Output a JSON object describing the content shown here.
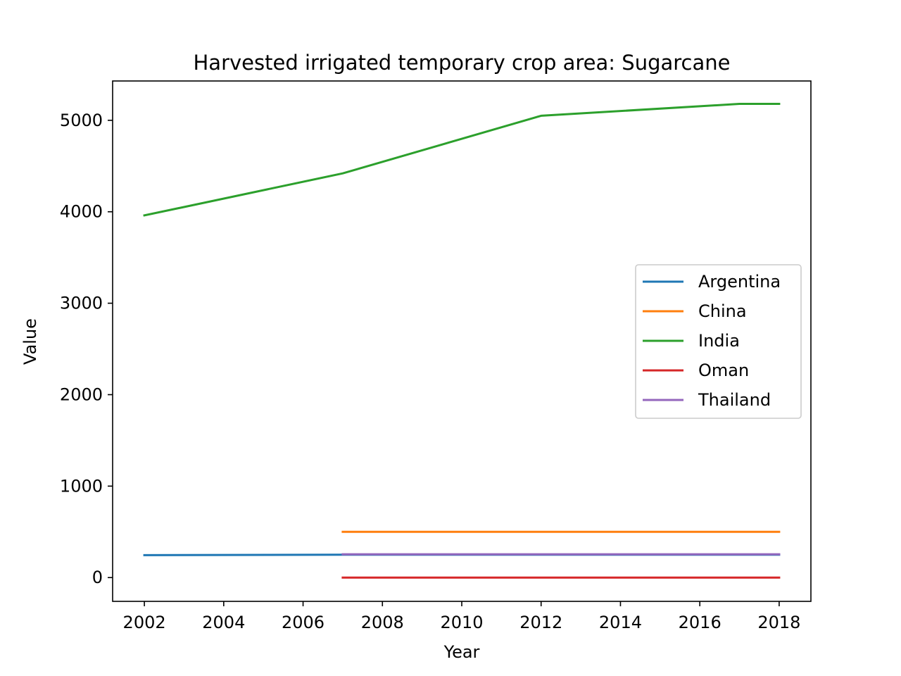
{
  "chart_data": {
    "type": "line",
    "title": "Harvested irrigated temporary crop area: Sugarcane",
    "xlabel": "Year",
    "ylabel": "Value",
    "xlim": [
      2001.2,
      2018.8
    ],
    "ylim": [
      -260,
      5430
    ],
    "xticks": [
      2002,
      2004,
      2006,
      2008,
      2010,
      2012,
      2014,
      2016,
      2018
    ],
    "yticks": [
      0,
      1000,
      2000,
      3000,
      4000,
      5000
    ],
    "grid": false,
    "legend_position": "center-right",
    "series": [
      {
        "name": "Argentina",
        "color": "#1f77b4",
        "x": [
          2002,
          2007,
          2012,
          2017,
          2018
        ],
        "y": [
          245,
          250,
          250,
          250,
          250
        ]
      },
      {
        "name": "China",
        "color": "#ff7f0e",
        "x": [
          2007,
          2012,
          2017,
          2018
        ],
        "y": [
          500,
          500,
          500,
          500
        ]
      },
      {
        "name": "India",
        "color": "#2ca02c",
        "x": [
          2002,
          2007,
          2012,
          2017,
          2018
        ],
        "y": [
          3960,
          4420,
          5050,
          5180,
          5180
        ]
      },
      {
        "name": "Oman",
        "color": "#d62728",
        "x": [
          2007,
          2012,
          2017,
          2018
        ],
        "y": [
          0,
          0,
          0,
          0
        ]
      },
      {
        "name": "Thailand",
        "color": "#9467bd",
        "x": [
          2007,
          2012,
          2017,
          2018
        ],
        "y": [
          255,
          255,
          255,
          255
        ]
      }
    ]
  }
}
